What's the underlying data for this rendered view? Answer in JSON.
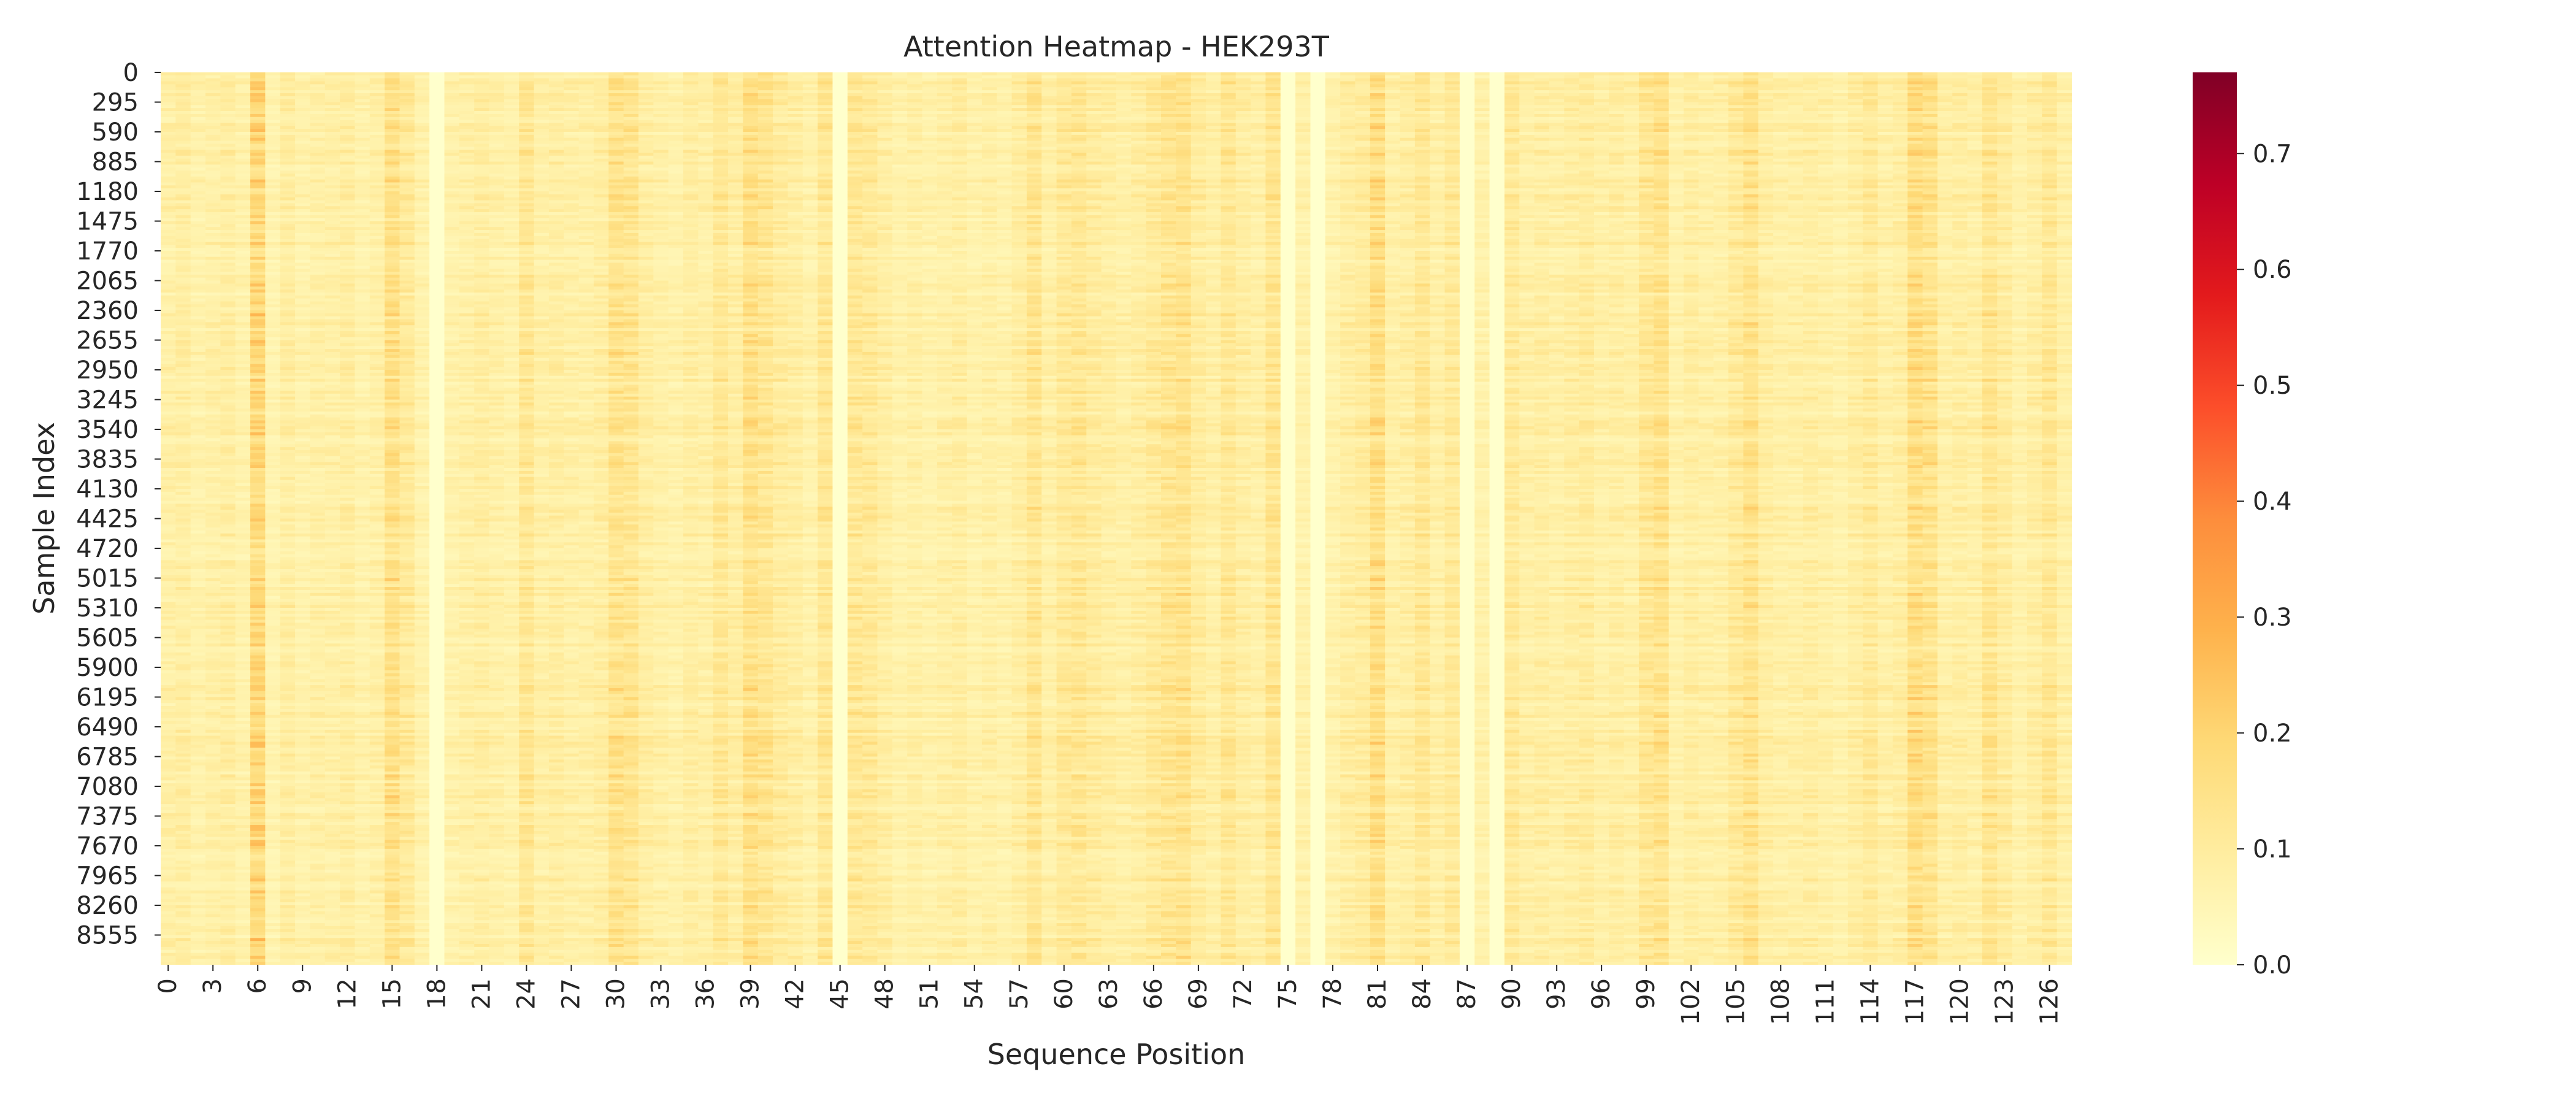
{
  "chart_data": {
    "type": "heatmap",
    "title": "Attention Heatmap - HEK293T",
    "xlabel": "Sequence Position",
    "ylabel": "Sample Index",
    "x_range": [
      0,
      127
    ],
    "x_tick_labels": [
      "0",
      "3",
      "6",
      "9",
      "12",
      "15",
      "18",
      "21",
      "24",
      "27",
      "30",
      "33",
      "36",
      "39",
      "42",
      "45",
      "48",
      "51",
      "54",
      "57",
      "60",
      "63",
      "66",
      "69",
      "72",
      "75",
      "78",
      "81",
      "84",
      "87",
      "90",
      "93",
      "96",
      "99",
      "102",
      "105",
      "108",
      "111",
      "114",
      "117",
      "120",
      "123",
      "126"
    ],
    "y_range": [
      0,
      8850
    ],
    "y_tick_labels": [
      "0",
      "295",
      "590",
      "885",
      "1180",
      "1475",
      "1770",
      "2065",
      "2360",
      "2655",
      "2950",
      "3245",
      "3540",
      "3835",
      "4130",
      "4425",
      "4720",
      "5015",
      "5310",
      "5605",
      "5900",
      "6195",
      "6490",
      "6785",
      "7080",
      "7375",
      "7670",
      "7965",
      "8260",
      "8555"
    ],
    "colorbar": {
      "colormap": "YlOrRd",
      "vmin": 0.0,
      "vmax": 0.77,
      "tick_labels": [
        "0.0",
        "0.1",
        "0.2",
        "0.3",
        "0.4",
        "0.5",
        "0.6",
        "0.7"
      ],
      "colors": [
        "#ffffcc",
        "#ffeda0",
        "#fed976",
        "#feb24c",
        "#fd8d3c",
        "#fc4e2a",
        "#e31a1c",
        "#bd0026",
        "#800026"
      ]
    },
    "approx_mean_attention_by_position": [
      0.08,
      0.09,
      0.07,
      0.08,
      0.09,
      0.07,
      0.18,
      0.06,
      0.09,
      0.07,
      0.08,
      0.08,
      0.09,
      0.07,
      0.08,
      0.15,
      0.11,
      0.07,
      0.0,
      0.07,
      0.08,
      0.09,
      0.08,
      0.07,
      0.12,
      0.08,
      0.09,
      0.08,
      0.08,
      0.09,
      0.14,
      0.13,
      0.09,
      0.08,
      0.07,
      0.09,
      0.08,
      0.12,
      0.09,
      0.15,
      0.13,
      0.1,
      0.09,
      0.07,
      0.12,
      0.0,
      0.12,
      0.11,
      0.09,
      0.07,
      0.08,
      0.07,
      0.08,
      0.09,
      0.07,
      0.08,
      0.07,
      0.09,
      0.13,
      0.08,
      0.11,
      0.12,
      0.1,
      0.09,
      0.08,
      0.09,
      0.11,
      0.13,
      0.14,
      0.1,
      0.08,
      0.12,
      0.09,
      0.08,
      0.13,
      0.0,
      0.07,
      0.0,
      0.07,
      0.09,
      0.1,
      0.16,
      0.08,
      0.09,
      0.12,
      0.08,
      0.11,
      0.0,
      0.07,
      0.0,
      0.11,
      0.08,
      0.09,
      0.08,
      0.09,
      0.1,
      0.08,
      0.09,
      0.08,
      0.12,
      0.14,
      0.07,
      0.09,
      0.08,
      0.08,
      0.11,
      0.14,
      0.09,
      0.08,
      0.08,
      0.09,
      0.08,
      0.07,
      0.09,
      0.11,
      0.08,
      0.09,
      0.16,
      0.14,
      0.08,
      0.09,
      0.08,
      0.13,
      0.1,
      0.07,
      0.09,
      0.12,
      0.08
    ]
  }
}
